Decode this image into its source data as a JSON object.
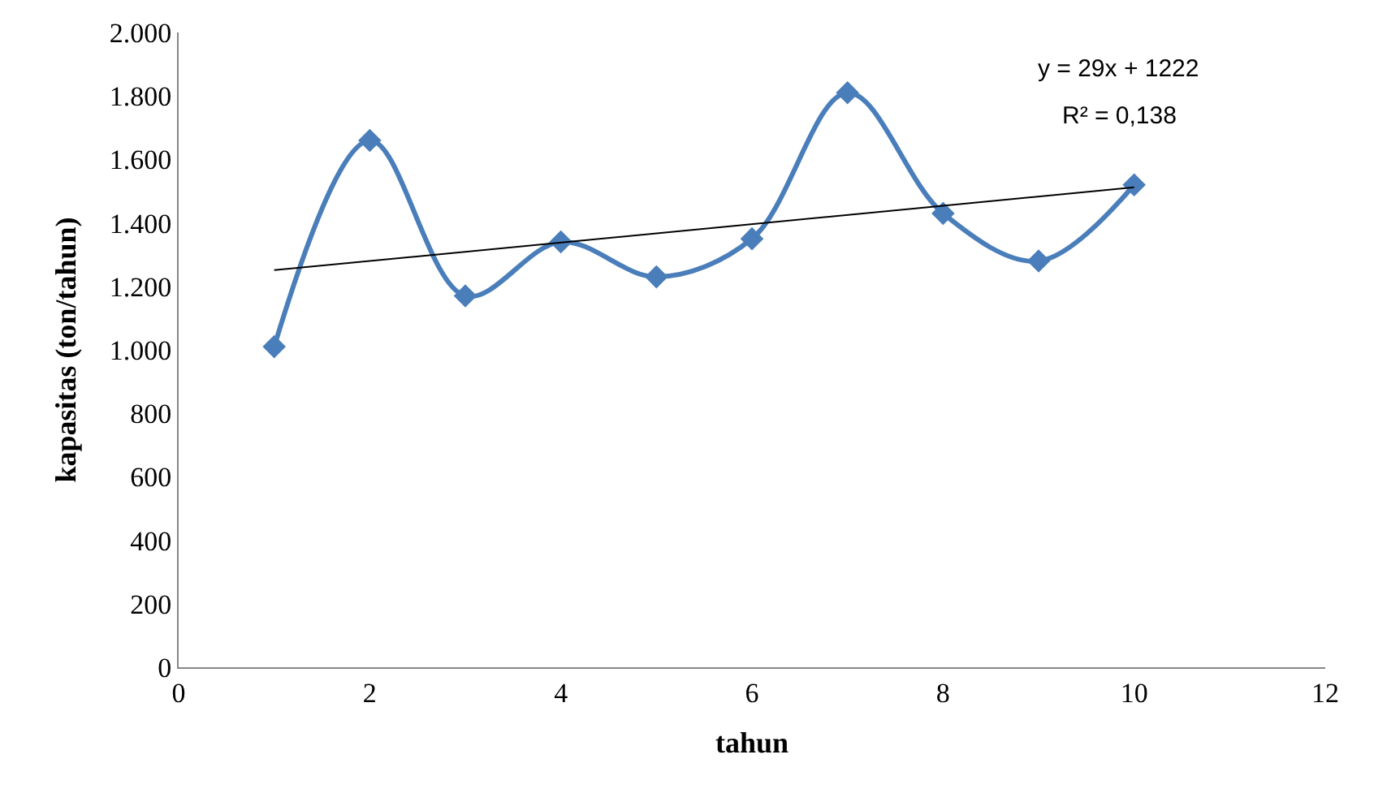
{
  "chart_data": {
    "type": "line",
    "xlabel": "tahun",
    "ylabel": "kapasitas (ton/tahun)",
    "xlim": [
      0,
      12
    ],
    "xticks": [
      0,
      2,
      4,
      6,
      8,
      10,
      12
    ],
    "ylim": [
      0,
      2000
    ],
    "yticks": [
      0,
      200,
      400,
      600,
      800,
      {
        "value": 1000,
        "label": "1.000"
      },
      {
        "value": 1200,
        "label": "1.200"
      },
      {
        "value": 1400,
        "label": "1.400"
      },
      {
        "value": 1600,
        "label": "1.600"
      },
      {
        "value": 1800,
        "label": "1.800"
      },
      {
        "value": 2000,
        "label": "2.000"
      }
    ],
    "series": [
      {
        "marker": "diamond",
        "color": "#4a7ebb",
        "x": [
          1,
          2,
          3,
          4,
          5,
          6,
          7,
          8,
          9,
          10
        ],
        "values": [
          1010,
          1660,
          1170,
          1340,
          1230,
          1350,
          1810,
          1430,
          1280,
          1520
        ]
      },
      {
        "marker": "none",
        "color": "#000000",
        "x": [
          1,
          10
        ],
        "values": [
          1251,
          1512
        ]
      }
    ],
    "annotations": [
      "y = 29x + 1222",
      "R² = 0,138"
    ]
  }
}
